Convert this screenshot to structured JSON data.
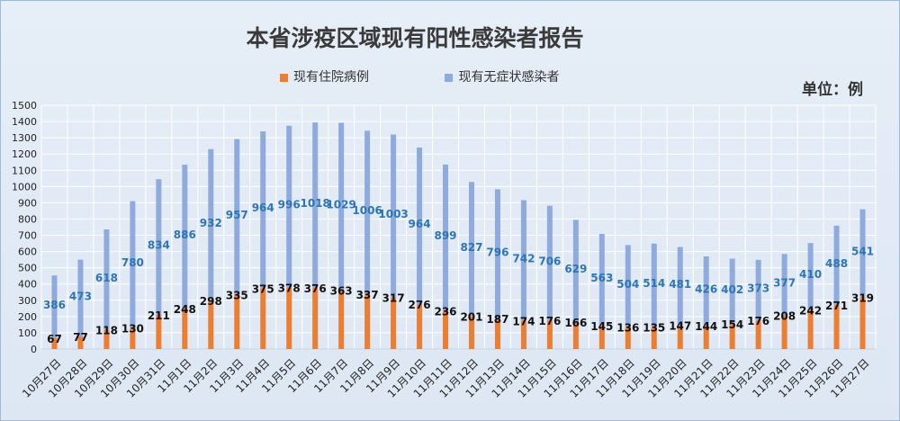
{
  "chart_data": {
    "type": "bar",
    "stacked": true,
    "title": "本省涉疫区域现有阳性感染者报告",
    "unit_label": "单位：例",
    "categories": [
      "10月27日",
      "10月28日",
      "10月29日",
      "10月30日",
      "10月31日",
      "11月1日",
      "11月2日",
      "11月3日",
      "11月4日",
      "11月5日",
      "11月6日",
      "11月7日",
      "11月8日",
      "11月9日",
      "11月10日",
      "11月11日",
      "11月12日",
      "11月13日",
      "11月14日",
      "11月15日",
      "11月16日",
      "11月17日",
      "11月18日",
      "11月19日",
      "11月20日",
      "11月21日",
      "11月22日",
      "11月23日",
      "11月24日",
      "11月25日",
      "11月26日",
      "11月27日"
    ],
    "series": [
      {
        "name": "现有住院病例",
        "color": "#ed7d31",
        "label_color": "#111111",
        "values": [
          67,
          77,
          118,
          130,
          211,
          248,
          298,
          335,
          375,
          378,
          376,
          363,
          337,
          317,
          276,
          236,
          201,
          187,
          174,
          176,
          166,
          145,
          136,
          135,
          147,
          144,
          154,
          176,
          208,
          242,
          271,
          319
        ]
      },
      {
        "name": "现有无症状感染者",
        "color": "#8faadc",
        "label_color": "#2e75b6",
        "values": [
          386,
          473,
          618,
          780,
          834,
          886,
          932,
          957,
          964,
          996,
          1018,
          1029,
          1006,
          1003,
          964,
          899,
          827,
          796,
          742,
          706,
          629,
          563,
          504,
          514,
          481,
          426,
          402,
          373,
          377,
          410,
          488,
          541
        ]
      }
    ],
    "y_ticks": [
      "0",
      "100",
      "200",
      "300",
      "400",
      "500",
      "600",
      "700",
      "800",
      "900",
      "1000",
      "1100",
      "1200",
      "1300",
      "1400",
      "1500"
    ],
    "ylim": [
      0,
      1500
    ],
    "grid": true,
    "legend_position": "top"
  }
}
